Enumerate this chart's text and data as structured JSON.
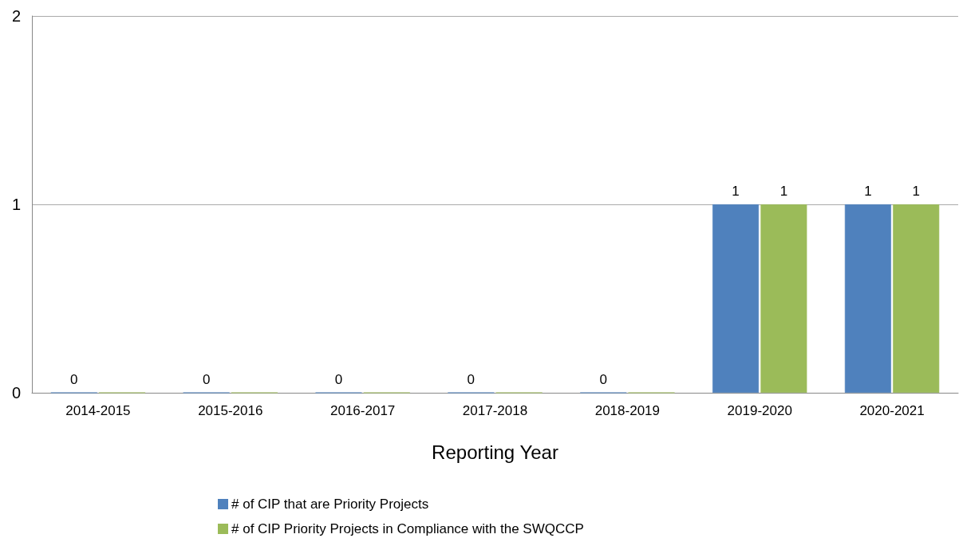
{
  "chart_data": {
    "type": "bar",
    "xlabel": "Reporting Year",
    "categories": [
      "2014-2015",
      "2015-2016",
      "2016-2017",
      "2017-2018",
      "2018-2019",
      "2019-2020",
      "2020-2021"
    ],
    "series": [
      {
        "name": "# of CIP that are Priority Projects",
        "color": "#4f81bd",
        "values": [
          0,
          0,
          0,
          0,
          0,
          1,
          1
        ],
        "value_labels": [
          "0",
          "0",
          "0",
          "0",
          "0",
          "1",
          "1"
        ]
      },
      {
        "name": "# of CIP Priority Projects in Compliance with the SWQCCP",
        "color": "#9bbb59",
        "values": [
          0,
          0,
          0,
          0,
          0,
          1,
          1
        ],
        "value_labels": [
          null,
          null,
          null,
          null,
          null,
          "1",
          "1"
        ]
      }
    ],
    "ylim": [
      0,
      2
    ],
    "yticks": [
      0,
      1,
      2
    ],
    "grid": "y",
    "legend": "bottom"
  }
}
